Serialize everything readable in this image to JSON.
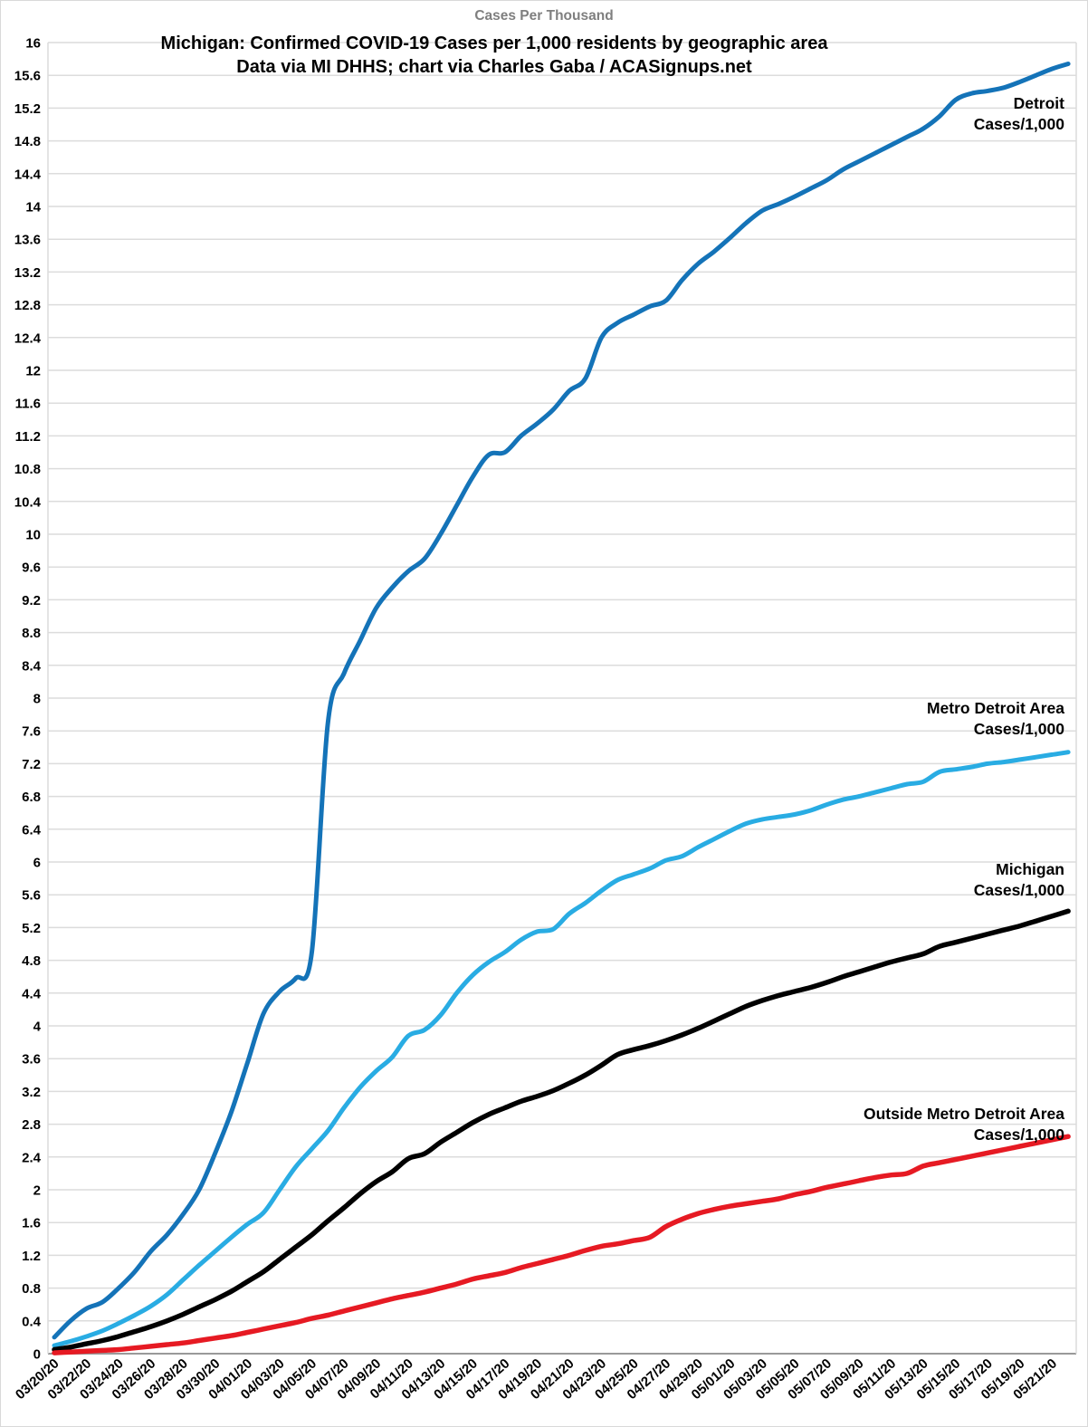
{
  "header": {
    "axis_title": "Cases Per Thousand",
    "title_line1": "Michigan: Confirmed COVID-19 Cases per 1,000 residents by geographic area",
    "title_line2": "Data via MI DHHS; chart via Charles Gaba / ACASignups.net"
  },
  "series_labels": {
    "detroit": [
      "Detroit",
      "Cases/1,000"
    ],
    "metro": [
      "Metro Detroit Area",
      "Cases/1,000"
    ],
    "michigan": [
      "Michigan",
      "Cases/1,000"
    ],
    "outside": [
      "Outside Metro Detroit Area",
      "Cases/1,000"
    ]
  },
  "colors": {
    "detroit": "#1473b8",
    "metro": "#29ace3",
    "michigan": "#000000",
    "outside": "#e61a23",
    "grid": "#dcdcdc",
    "axis_line": "#999999",
    "tick_text": "#000000",
    "axis_title_text": "#7f7f7f"
  },
  "chart_data": {
    "type": "line",
    "title": "Michigan: Confirmed COVID-19 Cases per 1,000 residents by geographic area",
    "subtitle": "Data via MI DHHS; chart via Charles Gaba / ACASignups.net",
    "ylabel": "Cases Per Thousand",
    "xlabel": "",
    "ylim": [
      0,
      16
    ],
    "y_tick_step": 0.4,
    "x_tick_every": 2,
    "grid": true,
    "legend_position": "inline-right-of-lines",
    "x": [
      "03/20/20",
      "03/21/20",
      "03/22/20",
      "03/23/20",
      "03/24/20",
      "03/25/20",
      "03/26/20",
      "03/27/20",
      "03/28/20",
      "03/29/20",
      "03/30/20",
      "03/31/20",
      "04/01/20",
      "04/02/20",
      "04/03/20",
      "04/04/20",
      "04/05/20",
      "04/06/20",
      "04/07/20",
      "04/08/20",
      "04/09/20",
      "04/10/20",
      "04/11/20",
      "04/12/20",
      "04/13/20",
      "04/14/20",
      "04/15/20",
      "04/16/20",
      "04/17/20",
      "04/18/20",
      "04/19/20",
      "04/20/20",
      "04/21/20",
      "04/22/20",
      "04/23/20",
      "04/24/20",
      "04/25/20",
      "04/26/20",
      "04/27/20",
      "04/28/20",
      "04/29/20",
      "04/30/20",
      "05/01/20",
      "05/02/20",
      "05/03/20",
      "05/04/20",
      "05/05/20",
      "05/06/20",
      "05/07/20",
      "05/08/20",
      "05/09/20",
      "05/10/20",
      "05/11/20",
      "05/12/20",
      "05/13/20",
      "05/14/20",
      "05/15/20",
      "05/16/20",
      "05/17/20",
      "05/18/20",
      "05/19/20",
      "05/20/20",
      "05/21/20",
      "05/22/20"
    ],
    "series": [
      {
        "name": "Detroit Cases/1,000",
        "color": "#1473b8",
        "stroke_width": 5,
        "values": [
          0.2,
          0.4,
          0.55,
          0.63,
          0.8,
          1.0,
          1.25,
          1.45,
          1.7,
          2.0,
          2.45,
          2.95,
          3.55,
          4.15,
          4.42,
          4.58,
          4.9,
          7.7,
          8.3,
          8.7,
          9.1,
          9.35,
          9.55,
          9.7,
          10.0,
          10.35,
          10.7,
          10.97,
          11.0,
          11.2,
          11.35,
          11.52,
          11.75,
          11.9,
          12.4,
          12.58,
          12.68,
          12.78,
          12.85,
          13.1,
          13.3,
          13.45,
          13.62,
          13.8,
          13.95,
          14.03,
          14.12,
          14.22,
          14.32,
          14.45,
          14.55,
          14.65,
          14.75,
          14.85,
          14.95,
          15.1,
          15.3,
          15.38,
          15.41,
          15.45,
          15.52,
          15.6,
          15.68,
          15.74
        ]
      },
      {
        "name": "Metro Detroit Area Cases/1,000",
        "color": "#29ace3",
        "stroke_width": 5,
        "values": [
          0.1,
          0.15,
          0.21,
          0.28,
          0.37,
          0.47,
          0.58,
          0.72,
          0.9,
          1.08,
          1.25,
          1.42,
          1.58,
          1.72,
          2.0,
          2.28,
          2.5,
          2.72,
          3.0,
          3.25,
          3.45,
          3.62,
          3.88,
          3.95,
          4.13,
          4.4,
          4.62,
          4.78,
          4.9,
          5.05,
          5.15,
          5.18,
          5.37,
          5.5,
          5.65,
          5.78,
          5.85,
          5.92,
          6.02,
          6.07,
          6.18,
          6.28,
          6.38,
          6.47,
          6.52,
          6.55,
          6.58,
          6.63,
          6.7,
          6.76,
          6.8,
          6.85,
          6.9,
          6.95,
          6.98,
          7.1,
          7.13,
          7.16,
          7.2,
          7.22,
          7.25,
          7.28,
          7.31,
          7.34
        ]
      },
      {
        "name": "Michigan Cases/1,000",
        "color": "#000000",
        "stroke_width": 5.5,
        "values": [
          0.05,
          0.08,
          0.12,
          0.16,
          0.21,
          0.27,
          0.33,
          0.4,
          0.48,
          0.57,
          0.66,
          0.76,
          0.88,
          1.0,
          1.15,
          1.3,
          1.45,
          1.62,
          1.78,
          1.95,
          2.1,
          2.22,
          2.38,
          2.44,
          2.58,
          2.7,
          2.82,
          2.92,
          3.0,
          3.08,
          3.14,
          3.21,
          3.3,
          3.4,
          3.52,
          3.65,
          3.71,
          3.76,
          3.82,
          3.89,
          3.97,
          4.06,
          4.15,
          4.24,
          4.31,
          4.37,
          4.42,
          4.47,
          4.53,
          4.6,
          4.66,
          4.72,
          4.78,
          4.83,
          4.88,
          4.97,
          5.02,
          5.07,
          5.12,
          5.17,
          5.22,
          5.28,
          5.34,
          5.4
        ]
      },
      {
        "name": "Outside Metro Detroit Area Cases/1,000",
        "color": "#e61a23",
        "stroke_width": 5.5,
        "values": [
          0.01,
          0.02,
          0.03,
          0.04,
          0.05,
          0.07,
          0.09,
          0.11,
          0.13,
          0.16,
          0.19,
          0.22,
          0.26,
          0.3,
          0.34,
          0.38,
          0.43,
          0.47,
          0.52,
          0.57,
          0.62,
          0.67,
          0.71,
          0.75,
          0.8,
          0.85,
          0.91,
          0.95,
          0.99,
          1.05,
          1.1,
          1.15,
          1.2,
          1.26,
          1.31,
          1.34,
          1.38,
          1.42,
          1.55,
          1.64,
          1.71,
          1.76,
          1.8,
          1.83,
          1.86,
          1.89,
          1.94,
          1.98,
          2.03,
          2.07,
          2.11,
          2.15,
          2.18,
          2.2,
          2.29,
          2.33,
          2.37,
          2.41,
          2.45,
          2.49,
          2.53,
          2.57,
          2.61,
          2.65
        ]
      }
    ]
  }
}
